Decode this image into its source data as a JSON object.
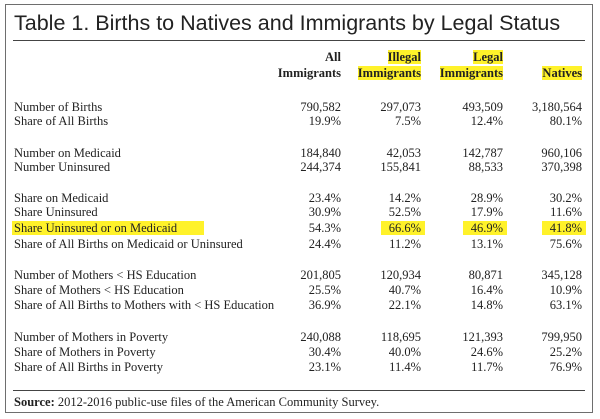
{
  "table": {
    "title": "Table 1. Births to Natives and Immigrants by Legal Status",
    "columns": [
      {
        "line1": "All",
        "line2": "Immigrants",
        "highlight": false
      },
      {
        "line1": "Illegal",
        "line2": "Immigrants",
        "highlight": true
      },
      {
        "line1": "Legal",
        "line2": "Immigrants",
        "highlight": true
      },
      {
        "line1": "",
        "line2": "Natives",
        "highlight": true
      }
    ],
    "rows": [
      {
        "label": "Number of Births",
        "values": [
          "790,582",
          "297,073",
          "493,509",
          "3,180,564"
        ]
      },
      {
        "label": "Share of All Births",
        "values": [
          "19.9%",
          "7.5%",
          "12.4%",
          "80.1%"
        ]
      },
      {
        "label": "Number on Medicaid",
        "values": [
          "184,840",
          "42,053",
          "142,787",
          "960,106"
        ]
      },
      {
        "label": "Number Uninsured",
        "values": [
          "244,374",
          "155,841",
          "88,533",
          "370,398"
        ]
      },
      {
        "label": "Share on Medicaid",
        "values": [
          "23.4%",
          "14.2%",
          "28.9%",
          "30.2%"
        ]
      },
      {
        "label": "Share Uninsured",
        "values": [
          "30.9%",
          "52.5%",
          "17.9%",
          "11.6%"
        ]
      },
      {
        "label": "Share Uninsured or on Medicaid",
        "values": [
          "54.3%",
          "66.6%",
          "46.9%",
          "41.8%"
        ]
      },
      {
        "label": "Share of All Births on Medicaid or Uninsured",
        "values": [
          "24.4%",
          "11.2%",
          "13.1%",
          "75.6%"
        ]
      },
      {
        "label": "Number of Mothers < HS Education",
        "values": [
          "201,805",
          "120,934",
          "80,871",
          "345,128"
        ]
      },
      {
        "label": "Share of Mothers < HS Education",
        "values": [
          "25.5%",
          "40.7%",
          "16.4%",
          "10.9%"
        ]
      },
      {
        "label": "Share of All Births to Mothers with < HS Education",
        "values": [
          "36.9%",
          "22.1%",
          "14.8%",
          "63.1%"
        ]
      },
      {
        "label": "Number of Mothers in Poverty",
        "values": [
          "240,088",
          "118,695",
          "121,393",
          "799,950"
        ]
      },
      {
        "label": "Share of Mothers in Poverty",
        "values": [
          "30.4%",
          "40.0%",
          "24.6%",
          "25.2%"
        ]
      },
      {
        "label": "Share of All Births in Poverty",
        "values": [
          "23.1%",
          "11.4%",
          "11.7%",
          "76.9%"
        ]
      }
    ],
    "highlighted_row_index": 6,
    "highlight_color": "#fff22a",
    "footnote": {
      "label": "Source:",
      "text": " 2012-2016 public-use files of the American Community Survey."
    }
  }
}
